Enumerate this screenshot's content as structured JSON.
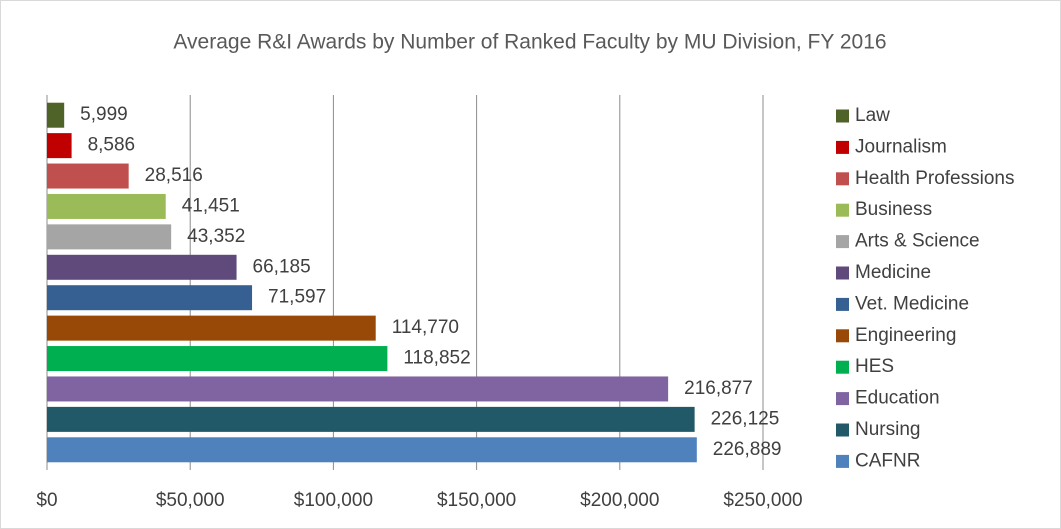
{
  "chart_data": {
    "type": "bar",
    "orientation": "horizontal",
    "title": "Average R&I Awards by Number of Ranked Faculty by MU Division, FY 2016",
    "categories": [
      "Law",
      "Journalism",
      "Health Professions",
      "Business",
      "Arts & Science",
      "Medicine",
      "Vet. Medicine",
      "Engineering",
      "HES",
      "Education",
      "Nursing",
      "CAFNR"
    ],
    "values": [
      5999,
      8586,
      28516,
      41451,
      43352,
      66185,
      71597,
      114770,
      118852,
      216877,
      226125,
      226889
    ],
    "value_labels": [
      "5,999",
      "8,586",
      "28,516",
      "41,451",
      "43,352",
      "66,185",
      "71,597",
      "114,770",
      "118,852",
      "216,877",
      "226,125",
      "226,889"
    ],
    "colors": [
      "#4f6228",
      "#c00000",
      "#c0504d",
      "#9bbb59",
      "#a5a5a5",
      "#604a7b",
      "#366092",
      "#984807",
      "#00b050",
      "#8064a2",
      "#215968",
      "#4f81bd"
    ],
    "xlim": [
      0,
      250000
    ],
    "xticks": [
      {
        "value": 0,
        "label": "$0"
      },
      {
        "value": 50000,
        "label": "$50,000"
      },
      {
        "value": 100000,
        "label": "$100,000"
      },
      {
        "value": 150000,
        "label": "$150,000"
      },
      {
        "value": 200000,
        "label": "$200,000"
      },
      {
        "value": 250000,
        "label": "$250,000"
      }
    ],
    "grid": true,
    "legend": "right"
  }
}
